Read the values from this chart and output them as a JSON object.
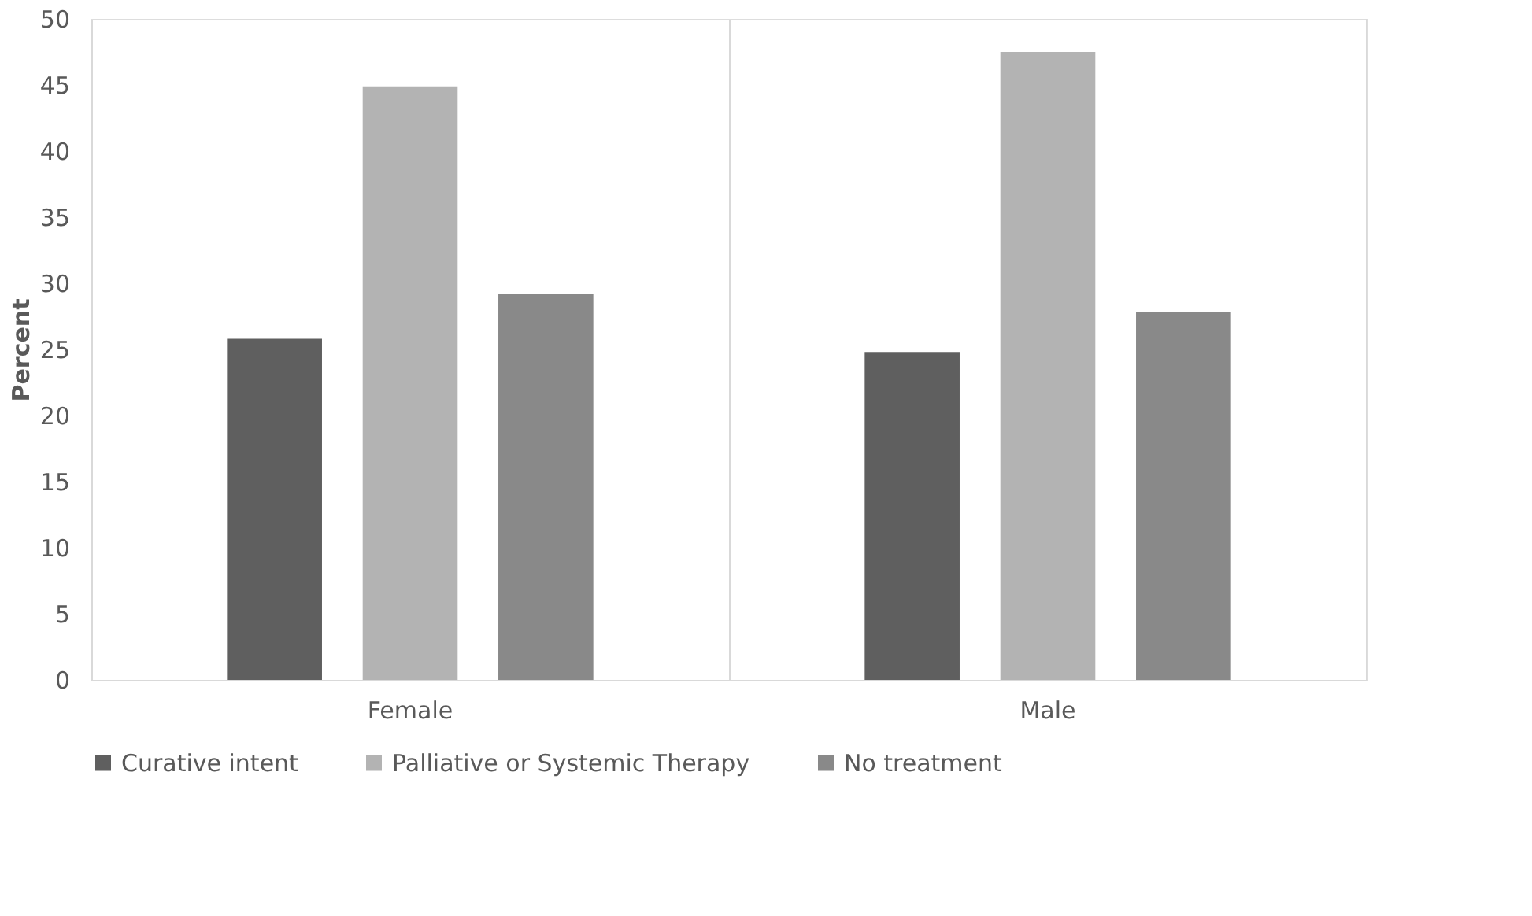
{
  "chart_data": {
    "type": "bar",
    "ylabel": "Percent",
    "categories": [
      "Female",
      "Male"
    ],
    "series": [
      {
        "name": "Curative intent",
        "color": "#5f5f5f",
        "values": [
          25.8,
          24.8
        ]
      },
      {
        "name": "Palliative or Systemic Therapy",
        "color": "#b3b3b3",
        "values": [
          44.9,
          47.5
        ]
      },
      {
        "name": "No treatment",
        "color": "#898989",
        "values": [
          29.2,
          27.8
        ]
      }
    ],
    "ylim": [
      0,
      50
    ],
    "yticks": [
      0,
      5,
      10,
      15,
      20,
      25,
      30,
      35,
      40,
      45,
      50
    ],
    "grid": "x",
    "legend": "bottom"
  }
}
